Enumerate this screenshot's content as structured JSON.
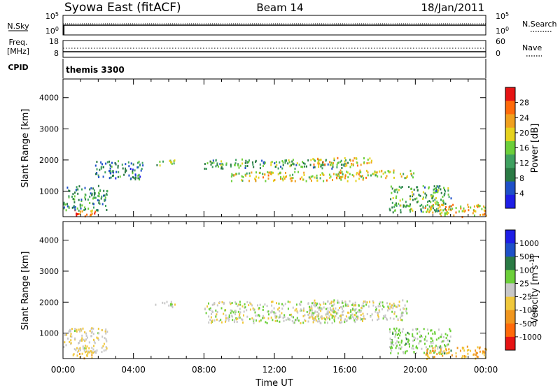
{
  "header": {
    "station": "Syowa East (fitACF)",
    "beam": "Beam 14",
    "date": "18/Jan/2011"
  },
  "strips": {
    "noise_left_label": "N.Sky",
    "noise_left_ticks": [
      "10^5",
      "10^0"
    ],
    "noise_right_label": "N.Search",
    "noise_right_ticks": [
      "10^5",
      "10^0"
    ],
    "freq_label_line1": "Freq.",
    "freq_label_line2": "[MHz]",
    "freq_ticks": [
      "18",
      "8"
    ],
    "nave_label": "Nave",
    "nave_ticks": [
      "60",
      "0"
    ],
    "cpid_label": "CPID",
    "cpid_value": "themis 3300"
  },
  "colors": {
    "power_scale": [
      "#1e1ee6",
      "#1e50c8",
      "#2a7a44",
      "#3fa160",
      "#6ccf3a",
      "#e6d21e",
      "#f0a01e",
      "#ff6a0a",
      "#e61414"
    ],
    "velocity_scale": [
      "#e61414",
      "#ff6a0a",
      "#f0961e",
      "#f0c83c",
      "#c8c8c8",
      "#6ccf3a",
      "#2a7a44",
      "#1e50c8",
      "#1e1ee6"
    ],
    "ground_scatter": "#c8c8c8"
  },
  "chart_data": [
    {
      "type": "heatmap",
      "name": "power",
      "xlabel": "Time UT",
      "ylabel": "Slant Range [km]",
      "x_ticks": [
        "00:00",
        "04:00",
        "08:00",
        "12:00",
        "16:00",
        "20:00",
        "00:00"
      ],
      "xlim_hours": [
        0,
        24
      ],
      "ylim_km": [
        180,
        4600
      ],
      "y_ticks": [
        1000,
        2000,
        3000,
        4000
      ],
      "colorbar_label": "Power [dB]",
      "colorbar_ticks": [
        "28",
        "24",
        "20",
        "16",
        "12",
        "8",
        "4"
      ],
      "colorbar_range": [
        0,
        30
      ],
      "echo_regions": [
        {
          "t0": 0.4,
          "t1": 1.8,
          "r0": 200,
          "r1": 450,
          "power": 24
        },
        {
          "t0": 0.0,
          "t1": 2.5,
          "r0": 400,
          "r1": 1200,
          "power": 10
        },
        {
          "t0": 1.8,
          "t1": 4.5,
          "r0": 1400,
          "r1": 2000,
          "power": 8
        },
        {
          "t0": 5.2,
          "t1": 6.4,
          "r0": 1850,
          "r1": 2050,
          "power": 14
        },
        {
          "t0": 8.0,
          "t1": 16.5,
          "r0": 1750,
          "r1": 2050,
          "power": 12
        },
        {
          "t0": 9.5,
          "t1": 17.0,
          "r0": 1350,
          "r1": 1650,
          "power": 18
        },
        {
          "t0": 14.0,
          "t1": 17.5,
          "r0": 1850,
          "r1": 2100,
          "power": 20
        },
        {
          "t0": 15.5,
          "t1": 20.0,
          "r0": 1450,
          "r1": 1700,
          "power": 18
        },
        {
          "t0": 18.5,
          "t1": 22.0,
          "r0": 350,
          "r1": 1200,
          "power": 12
        },
        {
          "t0": 20.5,
          "t1": 24.0,
          "r0": 200,
          "r1": 600,
          "power": 20
        }
      ]
    },
    {
      "type": "heatmap",
      "name": "velocity",
      "xlabel": "Time UT",
      "ylabel": "Slant Range [km]",
      "x_ticks": [
        "00:00",
        "04:00",
        "08:00",
        "12:00",
        "16:00",
        "20:00",
        "00:00"
      ],
      "xlim_hours": [
        0,
        24
      ],
      "ylim_km": [
        180,
        4600
      ],
      "y_ticks": [
        1000,
        2000,
        3000,
        4000
      ],
      "colorbar_label": "Velocity [m s^-1]",
      "colorbar_ticks": [
        "1000",
        "500",
        "100",
        "25",
        "-25",
        "-100",
        "-500",
        "-1000"
      ],
      "colorbar_range": [
        -1000,
        1000
      ],
      "echo_regions": [
        {
          "t0": 0.4,
          "t1": 1.8,
          "r0": 200,
          "r1": 450,
          "velocity": -200
        },
        {
          "t0": 0.0,
          "t1": 2.5,
          "r0": 400,
          "r1": 1200,
          "velocity": -80
        },
        {
          "t0": 5.2,
          "t1": 6.4,
          "r0": 1850,
          "r1": 2050,
          "velocity": 0
        },
        {
          "t0": 8.0,
          "t1": 17.0,
          "r0": 1350,
          "r1": 2050,
          "velocity": 0
        },
        {
          "t0": 14.0,
          "t1": 19.5,
          "r0": 1450,
          "r1": 2100,
          "velocity": 0
        },
        {
          "t0": 18.5,
          "t1": 22.0,
          "r0": 350,
          "r1": 1200,
          "velocity": 150
        },
        {
          "t0": 20.5,
          "t1": 24.0,
          "r0": 200,
          "r1": 600,
          "velocity": -300
        }
      ]
    }
  ]
}
